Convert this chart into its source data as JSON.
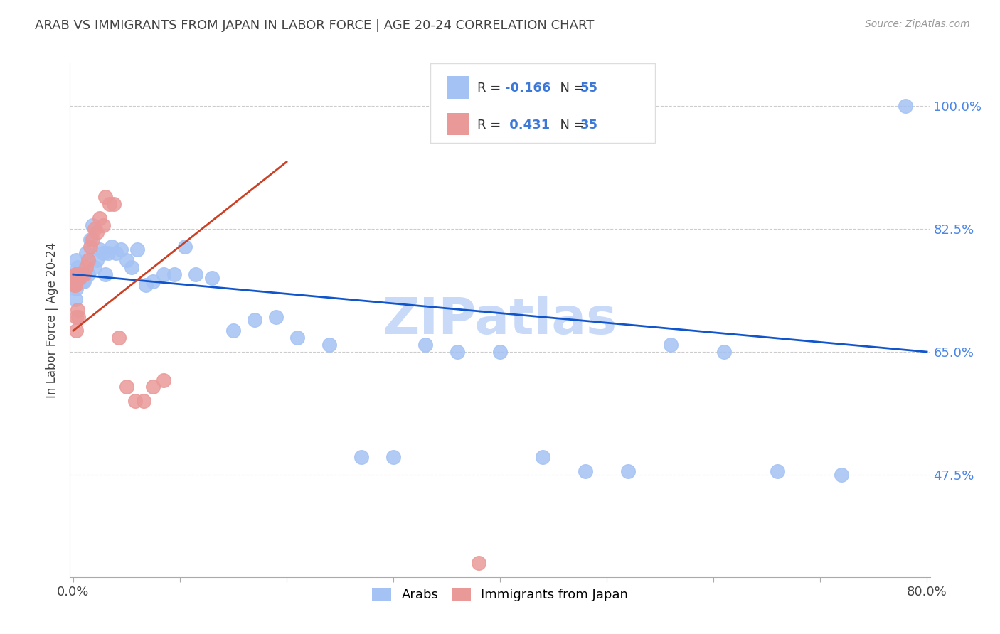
{
  "title": "ARAB VS IMMIGRANTS FROM JAPAN IN LABOR FORCE | AGE 20-24 CORRELATION CHART",
  "source": "Source: ZipAtlas.com",
  "ylabel": "In Labor Force | Age 20-24",
  "xlim": [
    0.0,
    0.8
  ],
  "ylim": [
    0.33,
    1.06
  ],
  "xticks": [
    0.0,
    0.1,
    0.2,
    0.3,
    0.4,
    0.5,
    0.6,
    0.7,
    0.8
  ],
  "xticklabels": [
    "0.0%",
    "",
    "",
    "",
    "",
    "",
    "",
    "",
    "80.0%"
  ],
  "ytick_positions": [
    0.475,
    0.65,
    0.825,
    1.0
  ],
  "ytick_labels": [
    "47.5%",
    "65.0%",
    "82.5%",
    "100.0%"
  ],
  "legend_R_blue": "-0.166",
  "legend_N_blue": "55",
  "legend_R_pink": "0.431",
  "legend_N_pink": "35",
  "blue_color": "#a4c2f4",
  "pink_color": "#ea9999",
  "blue_line_color": "#1155cc",
  "pink_line_color": "#cc4125",
  "watermark_text": "ZIPatlas",
  "watermark_color": "#c9daf8",
  "grid_color": "#cccccc",
  "background_color": "#ffffff",
  "title_color": "#434343",
  "source_color": "#999999",
  "ytick_color": "#4a86e8",
  "xtick_color": "#434343",
  "ylabel_color": "#434343",
  "blue_scatter_x": [
    0.001,
    0.002,
    0.002,
    0.003,
    0.003,
    0.003,
    0.004,
    0.005,
    0.006,
    0.007,
    0.008,
    0.009,
    0.01,
    0.011,
    0.012,
    0.014,
    0.016,
    0.018,
    0.02,
    0.022,
    0.025,
    0.028,
    0.03,
    0.033,
    0.036,
    0.04,
    0.045,
    0.05,
    0.055,
    0.06,
    0.068,
    0.075,
    0.085,
    0.095,
    0.105,
    0.115,
    0.13,
    0.15,
    0.17,
    0.19,
    0.21,
    0.24,
    0.27,
    0.3,
    0.33,
    0.36,
    0.4,
    0.44,
    0.48,
    0.52,
    0.56,
    0.61,
    0.66,
    0.72,
    0.78
  ],
  "blue_scatter_y": [
    0.755,
    0.725,
    0.76,
    0.745,
    0.74,
    0.78,
    0.77,
    0.755,
    0.75,
    0.76,
    0.76,
    0.75,
    0.75,
    0.76,
    0.79,
    0.76,
    0.81,
    0.83,
    0.77,
    0.78,
    0.795,
    0.79,
    0.76,
    0.79,
    0.8,
    0.79,
    0.795,
    0.78,
    0.77,
    0.795,
    0.745,
    0.75,
    0.76,
    0.76,
    0.8,
    0.76,
    0.755,
    0.68,
    0.695,
    0.7,
    0.67,
    0.66,
    0.5,
    0.5,
    0.66,
    0.65,
    0.65,
    0.5,
    0.48,
    0.48,
    0.66,
    0.65,
    0.48,
    0.475,
    1.0
  ],
  "pink_scatter_x": [
    0.001,
    0.001,
    0.002,
    0.002,
    0.002,
    0.003,
    0.003,
    0.004,
    0.005,
    0.006,
    0.007,
    0.008,
    0.01,
    0.012,
    0.014,
    0.016,
    0.018,
    0.02,
    0.022,
    0.025,
    0.028,
    0.03,
    0.034,
    0.038,
    0.043,
    0.05,
    0.058,
    0.066,
    0.075,
    0.085,
    0.003,
    0.003,
    0.004,
    0.005,
    0.38
  ],
  "pink_scatter_y": [
    0.75,
    0.745,
    0.745,
    0.76,
    0.75,
    0.755,
    0.76,
    0.755,
    0.76,
    0.755,
    0.76,
    0.76,
    0.76,
    0.77,
    0.78,
    0.8,
    0.81,
    0.825,
    0.82,
    0.84,
    0.83,
    0.87,
    0.86,
    0.86,
    0.67,
    0.6,
    0.58,
    0.58,
    0.6,
    0.61,
    0.68,
    0.7,
    0.71,
    0.7,
    0.35
  ],
  "blue_line_x": [
    0.0,
    0.8
  ],
  "blue_line_y": [
    0.76,
    0.65
  ],
  "pink_line_x": [
    0.0,
    0.2
  ],
  "pink_line_y": [
    0.68,
    0.92
  ]
}
